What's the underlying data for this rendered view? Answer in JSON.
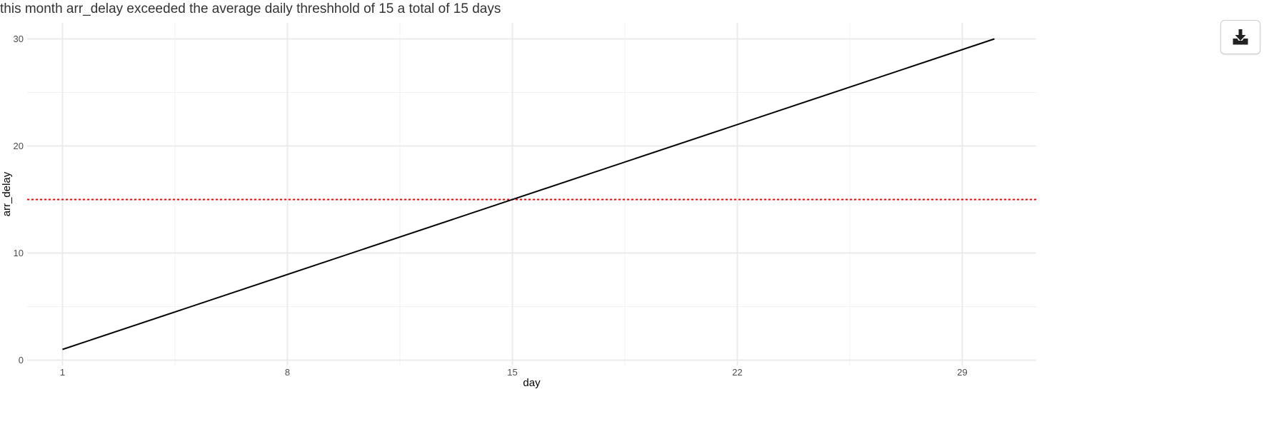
{
  "chart_data": {
    "type": "line",
    "title": "this month arr_delay exceeded the average daily threshhold of 15 a total of 15 days",
    "xlabel": "day",
    "ylabel": "arr_delay",
    "x": [
      1,
      30
    ],
    "series": [
      {
        "values": [
          1,
          30
        ],
        "color": "#000000"
      }
    ],
    "threshold": {
      "value": 15,
      "color": "#ff0000",
      "style": "dotted"
    },
    "xlim": [
      -0.1,
      31.3
    ],
    "ylim": [
      -0.5,
      31.5
    ],
    "x_major_ticks": [
      1,
      8,
      15,
      22,
      29
    ],
    "x_minor_ticks": [
      4.5,
      11.5,
      18.5,
      25.5
    ],
    "y_major_ticks": [
      0,
      10,
      20,
      30
    ],
    "y_minor_ticks": [
      5,
      15,
      25
    ],
    "grid": true,
    "legend": "none"
  },
  "toolbar": {
    "download_icon": "download-icon"
  }
}
